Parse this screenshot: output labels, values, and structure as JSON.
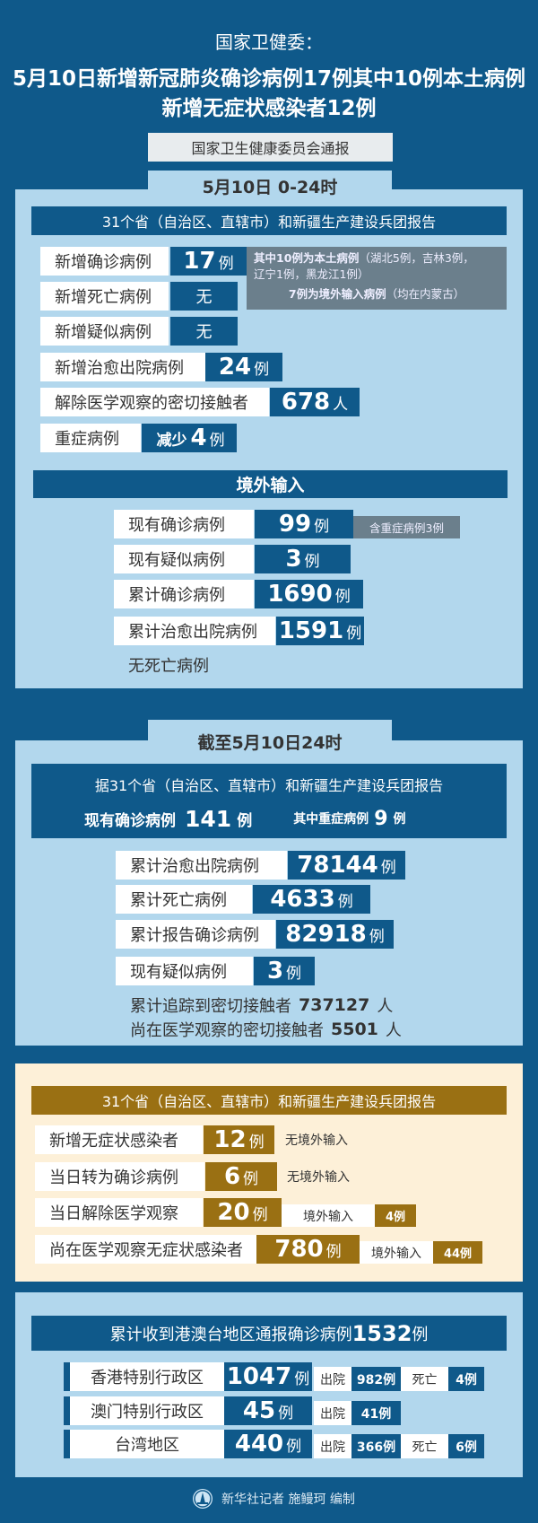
{
  "header": {
    "source": "国家卫健委：",
    "headline_line1": "5月10日新增新冠肺炎确诊病例17例其中10例本土病例",
    "headline_line2": "新增无症状感染者12例",
    "notice": "国家卫生健康委员会通报"
  },
  "daily": {
    "tab": "5月10日 0-24时",
    "bar": "31个省（自治区、直辖市）和新疆生产建设兵团报告",
    "rows": [
      {
        "label": "新增确诊病例",
        "value": "17",
        "unit": "例"
      },
      {
        "label": "新增死亡病例",
        "value": "无",
        "unit": ""
      },
      {
        "label": "新增疑似病例",
        "value": "无",
        "unit": ""
      },
      {
        "label": "新增治愈出院病例",
        "value": "24",
        "unit": "例"
      },
      {
        "label": "解除医学观察的密切接触者",
        "value": "678",
        "unit": "人"
      },
      {
        "label": "重症病例",
        "value_prefix": "减少",
        "value": "4",
        "unit": "例"
      }
    ],
    "note": {
      "line1_bold": "其中10例为本土病例",
      "line1_rest": "（湖北5例，吉林3例，",
      "line2": "辽宁1例，黑龙江1例）",
      "line3_bold": "7例为境外输入病例",
      "line3_rest": "（均在内蒙古）"
    },
    "imported": {
      "bar": "境外输入",
      "rows": [
        {
          "label": "现有确诊病例",
          "value": "99",
          "unit": "例",
          "note": "含重症病例3例"
        },
        {
          "label": "现有疑似病例",
          "value": "3",
          "unit": "例"
        },
        {
          "label": "累计确诊病例",
          "value": "1690",
          "unit": "例"
        },
        {
          "label": "累计治愈出院病例",
          "value": "1591",
          "unit": "例"
        }
      ],
      "no_death": "无死亡病例"
    }
  },
  "cumulative": {
    "tab": "截至5月10日24时",
    "bar_line1": "据31个省（自治区、直辖市）和新疆生产建设兵团报告",
    "current_label": "现有确诊病例",
    "current_value": "141",
    "current_unit": "例",
    "severe_label": "其中重症病例",
    "severe_value": "9",
    "severe_unit": "例",
    "rows": [
      {
        "label": "累计治愈出院病例",
        "value": "78144",
        "unit": "例"
      },
      {
        "label": "累计死亡病例",
        "value": "4633",
        "unit": "例"
      },
      {
        "label": "累计报告确诊病例",
        "value": "82918",
        "unit": "例"
      },
      {
        "label": "现有疑似病例",
        "value": "3",
        "unit": "例"
      }
    ],
    "contacts_traced_label": "累计追踪到密切接触者",
    "contacts_traced_value": "737127",
    "contacts_traced_unit": "人",
    "contacts_observed_label": "尚在医学观察的密切接触者",
    "contacts_observed_value": "5501",
    "contacts_observed_unit": "人"
  },
  "asymptomatic": {
    "bar": "31个省（自治区、直辖市）和新疆生产建设兵团报告",
    "rows": [
      {
        "label": "新增无症状感染者",
        "value": "12",
        "unit": "例",
        "note": "无境外输入"
      },
      {
        "label": "当日转为确诊病例",
        "value": "6",
        "unit": "例",
        "note": "无境外输入"
      },
      {
        "label": "当日解除医学观察",
        "value": "20",
        "unit": "例",
        "note": "境外输入",
        "note_value": "4例"
      },
      {
        "label": "尚在医学观察无症状感染者",
        "value": "780",
        "unit": "例",
        "note": "境外输入",
        "note_value": "44例"
      }
    ]
  },
  "hmt": {
    "bar_text": "累计收到港澳台地区通报确诊病例",
    "bar_value": "1532",
    "bar_unit": "例",
    "discharged_label": "出院",
    "death_label": "死亡",
    "rows": [
      {
        "region": "香港特别行政区",
        "value": "1047",
        "unit": "例",
        "discharged": "982例",
        "deaths": "4例"
      },
      {
        "region": "澳门特别行政区",
        "value": "45",
        "unit": "例",
        "discharged": "41例"
      },
      {
        "region": "台湾地区",
        "value": "440",
        "unit": "例",
        "discharged": "366例",
        "deaths": "6例"
      }
    ]
  },
  "footer": {
    "logo_icon": "xinhua-logo-icon",
    "credit": "新华社记者 施鳗珂 编制"
  },
  "colors": {
    "background": "#0f598a",
    "panel": "#b2d7ed",
    "note_gray": "#6b7f8c",
    "gold": "#9a7013",
    "cream": "#fdf0d8"
  }
}
